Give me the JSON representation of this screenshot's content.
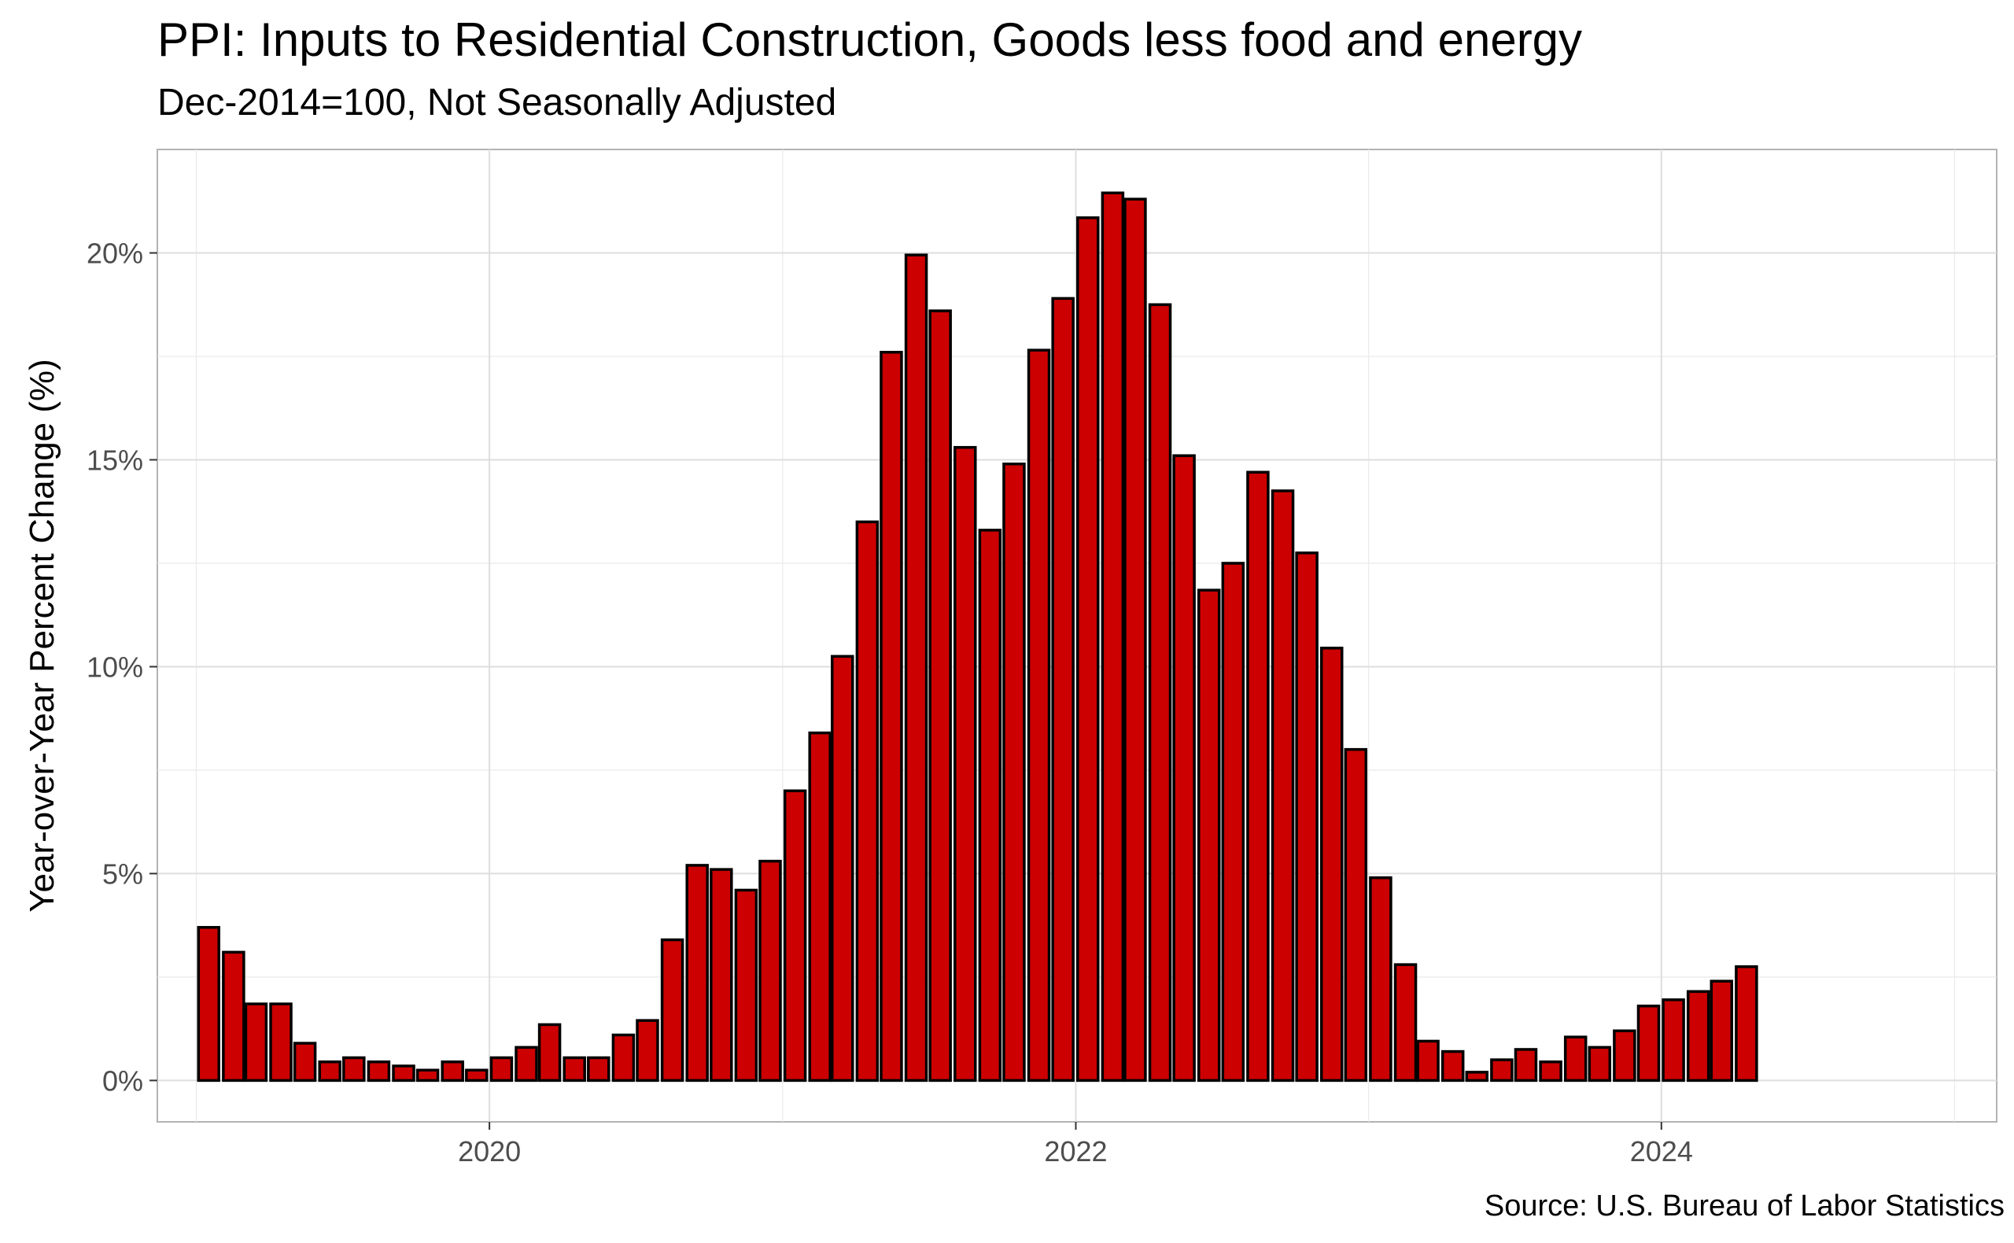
{
  "chart_data": {
    "type": "bar",
    "title": "PPI: Inputs to Residential Construction, Goods less food and energy",
    "subtitle": "Dec-2014=100, Not Seasonally Adjusted",
    "ylabel": "Year-over-Year Percent Change (%)",
    "xlabel": "",
    "caption": "Source: U.S. Bureau of Labor Statistics",
    "bar_color": "#cc0000",
    "bar_outline": "#000000",
    "grid": true,
    "ylim": [
      -1,
      22.5
    ],
    "xlim": [
      "2018-11-13",
      "2025-02-22"
    ],
    "y_ticks": [
      0,
      5,
      10,
      15,
      20
    ],
    "y_tick_labels": [
      "0%",
      "5%",
      "10%",
      "15%",
      "20%"
    ],
    "x_ticks": [
      "2020-01-01",
      "2022-01-01",
      "2024-01-01"
    ],
    "x_tick_labels": [
      "2020",
      "2022",
      "2024"
    ],
    "series": [
      {
        "x": [
          "2019-01",
          "2019-02",
          "2019-03",
          "2019-04",
          "2019-05",
          "2019-06",
          "2019-07",
          "2019-08",
          "2019-09",
          "2019-10",
          "2019-11",
          "2019-12",
          "2020-01",
          "2020-02",
          "2020-03",
          "2020-04",
          "2020-05",
          "2020-06",
          "2020-07",
          "2020-08",
          "2020-09",
          "2020-10",
          "2020-11",
          "2020-12",
          "2021-01",
          "2021-02",
          "2021-03",
          "2021-04",
          "2021-05",
          "2021-06",
          "2021-07",
          "2021-08",
          "2021-09",
          "2021-10",
          "2021-11",
          "2021-12",
          "2022-01",
          "2022-02",
          "2022-03",
          "2022-04",
          "2022-05",
          "2022-06",
          "2022-07",
          "2022-08",
          "2022-09",
          "2022-10",
          "2022-11",
          "2022-12",
          "2023-01",
          "2023-02",
          "2023-03",
          "2023-04",
          "2023-05",
          "2023-06",
          "2023-07",
          "2023-08",
          "2023-09",
          "2023-10",
          "2023-11",
          "2023-12",
          "2024-01",
          "2024-02",
          "2024-03",
          "2024-04"
        ],
        "values": [
          3.7,
          3.1,
          1.85,
          1.85,
          0.9,
          0.45,
          0.55,
          0.45,
          0.35,
          0.25,
          0.45,
          0.25,
          0.55,
          0.8,
          1.35,
          0.55,
          0.55,
          1.1,
          1.45,
          3.4,
          5.2,
          5.1,
          4.6,
          5.3,
          7.0,
          8.4,
          10.25,
          13.5,
          17.6,
          19.95,
          18.6,
          15.3,
          13.3,
          14.9,
          17.65,
          18.9,
          20.85,
          21.45,
          21.3,
          18.75,
          15.1,
          11.85,
          12.5,
          14.7,
          14.25,
          12.75,
          10.45,
          8.0,
          4.9,
          2.8,
          0.95,
          0.7,
          0.2,
          0.5,
          0.75,
          0.45,
          1.05,
          0.8,
          1.2,
          1.8,
          1.95,
          2.15,
          2.4,
          2.75
        ]
      }
    ]
  }
}
